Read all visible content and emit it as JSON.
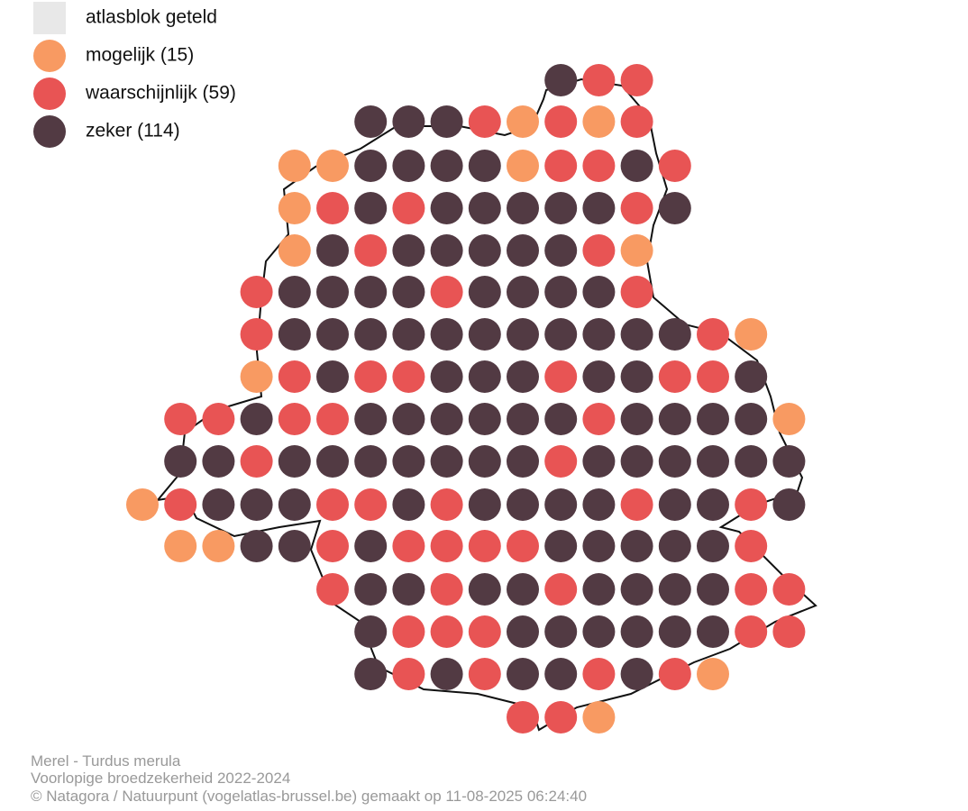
{
  "legend": {
    "items": [
      {
        "label": "atlasblok geteld",
        "color": "#e8e8e8"
      },
      {
        "label": "mogelijk (15)",
        "color": "#f89a62"
      },
      {
        "label": "waarschijnlijk (59)",
        "color": "#e85454"
      },
      {
        "label": "zeker (114)",
        "color": "#523a43"
      }
    ]
  },
  "footer": {
    "lines": [
      "Merel - Turdus merula",
      "Voorlopige broedzekerheid 2022-2024",
      "© Natagora / Natuurpunt (vogelatlas-brussel.be) gemaakt op 11-08-2025 06:24:40"
    ]
  }
}
